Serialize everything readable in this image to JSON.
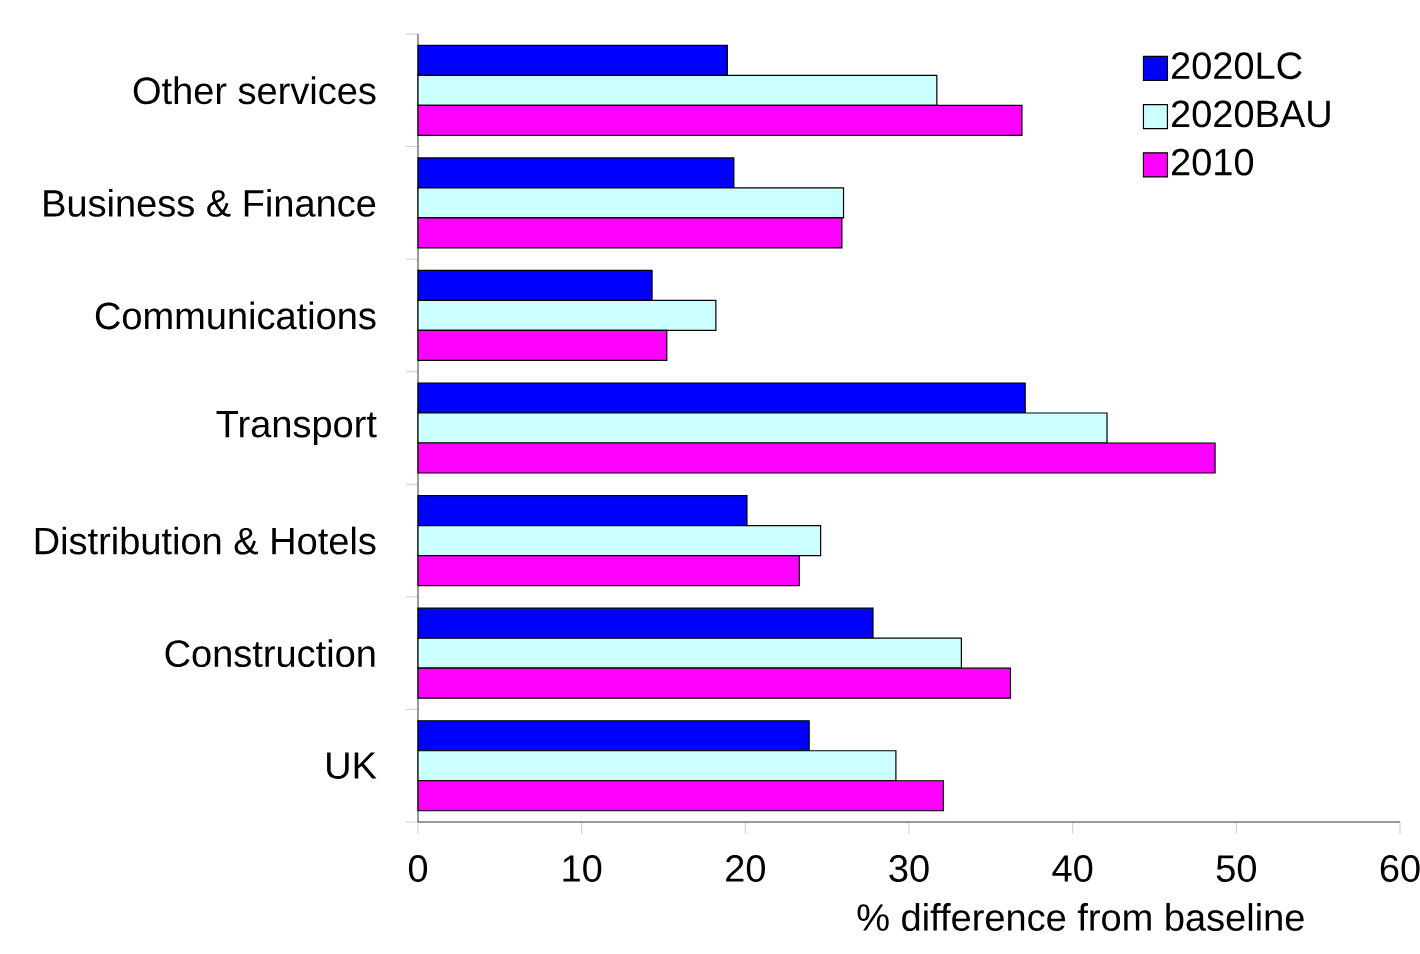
{
  "chart_data": {
    "type": "bar",
    "orientation": "horizontal",
    "xlabel": "% difference from baseline",
    "categories": [
      "Other services",
      "Business & Finance",
      "Communications",
      "Transport",
      "Distribution & Hotels",
      "Construction",
      "UK"
    ],
    "series": [
      {
        "name": "2020LC",
        "color": "#0000ff",
        "values": [
          18.9,
          19.3,
          14.3,
          37.1,
          20.1,
          27.8,
          23.9
        ]
      },
      {
        "name": "2020BAU",
        "color": "#ccffff",
        "values": [
          31.7,
          26.0,
          18.2,
          42.1,
          24.6,
          33.2,
          29.2
        ]
      },
      {
        "name": "2010",
        "color": "#ff00ff",
        "values": [
          36.9,
          25.9,
          15.2,
          48.7,
          23.3,
          36.2,
          32.1
        ]
      }
    ],
    "xlim": [
      0,
      60
    ],
    "xticks": [
      0,
      10,
      20,
      30,
      40,
      50,
      60
    ],
    "grid": false,
    "legend": "top right"
  }
}
